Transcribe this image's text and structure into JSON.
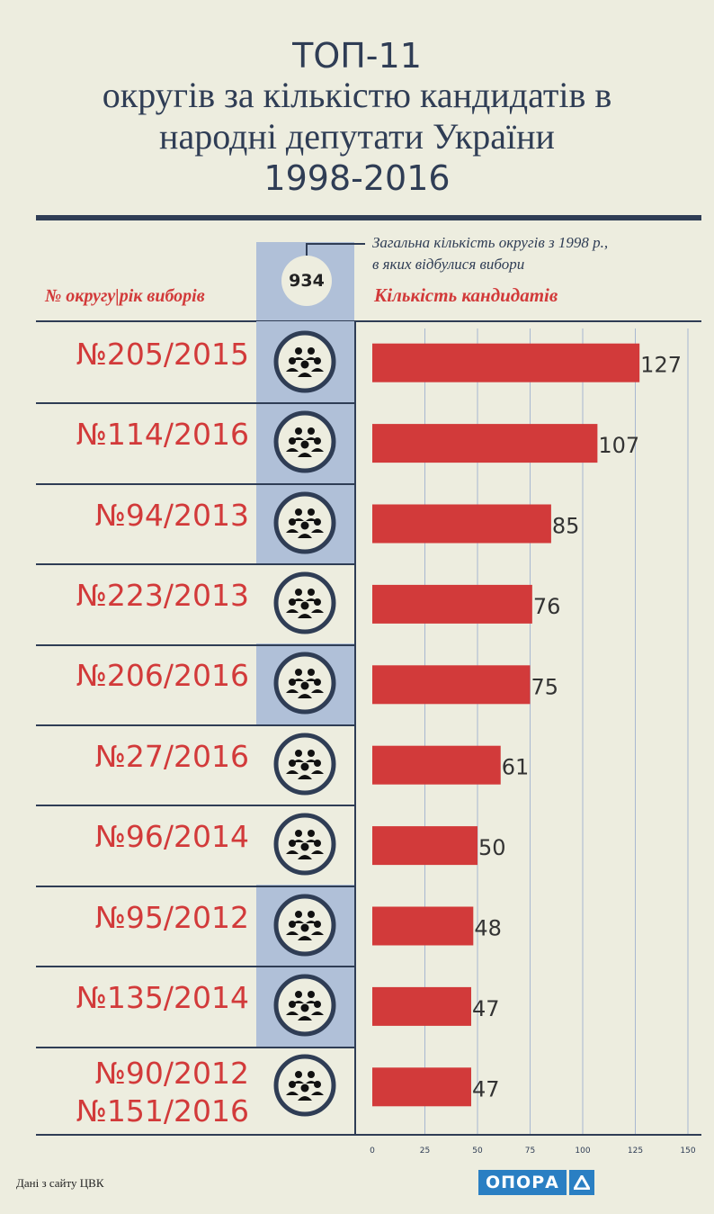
{
  "title": {
    "line1": "ТОП-11",
    "line2": "округів за кількістю кандидатів в",
    "line3": "народні депутати України",
    "line4": "1998-2016"
  },
  "header": {
    "district_label": "№ округу|рік виборів",
    "count_label": "Кількість кандидатів",
    "note_line1": "Загальна кількість округів з 1998 р.,",
    "note_line2": "в яких відбулися вибори",
    "total_districts": "934"
  },
  "footer": {
    "source": "Дані з сайту ЦВК",
    "logo": "ОПОРА"
  },
  "colors": {
    "bar": "#d23a3a",
    "text_dark": "#2f3d55",
    "highlight": "#b0c0d8",
    "background": "#ededdf"
  },
  "icon": "people-group-icon",
  "chart_data": {
    "type": "bar",
    "orientation": "horizontal",
    "categories": [
      "№205/2015",
      "№114/2016",
      "№94/2013",
      "№223/2013",
      "№206/2016",
      "№27/2016",
      "№96/2014",
      "№95/2012",
      "№135/2014",
      "№90/2012 №151/2016"
    ],
    "category_lines": [
      [
        "№205/2015"
      ],
      [
        "№114/2016"
      ],
      [
        "№94/2013"
      ],
      [
        "№223/2013"
      ],
      [
        "№206/2016"
      ],
      [
        "№27/2016"
      ],
      [
        "№96/2014"
      ],
      [
        "№95/2012"
      ],
      [
        "№135/2014"
      ],
      [
        "№90/2012",
        "№151/2016"
      ]
    ],
    "values": [
      127,
      107,
      85,
      76,
      75,
      61,
      50,
      48,
      47,
      47
    ],
    "highlighted": [
      true,
      true,
      true,
      false,
      true,
      false,
      false,
      true,
      true,
      false
    ],
    "xlim": [
      0,
      150
    ],
    "x_ticks": [
      0,
      25,
      50,
      75,
      100,
      125,
      150
    ],
    "grid": true
  }
}
